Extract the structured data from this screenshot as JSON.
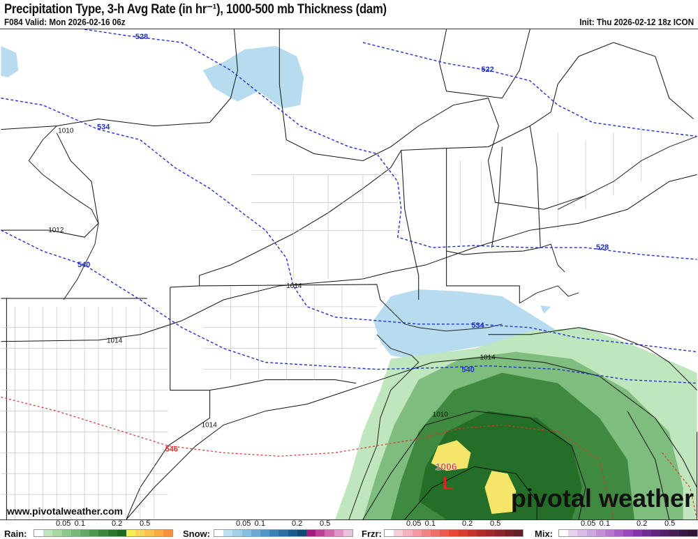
{
  "header": {
    "title": "Precipitation Type, 3-h Avg Rate (in hr⁻¹), 1000-500 mb Thickness (dam)",
    "valid": "F084 Valid: Mon 2026-02-16 06z",
    "init": "Init: Thu 2026-02-12 18z ICON"
  },
  "map": {
    "thickness_labels": [
      "528",
      "522",
      "534",
      "540",
      "528",
      "534",
      "540",
      "546"
    ],
    "pressure_labels": [
      "1010",
      "1012",
      "1014",
      "1014",
      "1014",
      "1014",
      "1010",
      "1006"
    ],
    "low_marker": "L",
    "colors": {
      "thickness": "#1f2fd0",
      "thickness_warm": "#e03030",
      "isobar": "#111111",
      "low": "#e02020"
    }
  },
  "watermark": "www.pivotalweather.com",
  "brand": "pivotal weather",
  "legend": [
    {
      "label": "Rain:",
      "ticks": [
        "0.05",
        "0.1",
        "0.2",
        "0.5"
      ],
      "colors": [
        "#ffffff",
        "#bfe6bd",
        "#a6d8a4",
        "#8ec98c",
        "#78b977",
        "#63a863",
        "#4f984f",
        "#3c873d",
        "#2b772d",
        "#1d6a20",
        "#f5ee55",
        "#f8d65a",
        "#f9c150",
        "#f9aa45",
        "#f9913a"
      ]
    },
    {
      "label": "Snow:",
      "ticks": [
        "0.05",
        "0.1",
        "0.2",
        "0.5"
      ],
      "colors": [
        "#ffffff",
        "#bfe0f0",
        "#a3d0e8",
        "#86bedf",
        "#6aaad4",
        "#5096c6",
        "#3b82b6",
        "#2a6ea3",
        "#1c5a8e",
        "#0f4a75",
        "#a01c7c",
        "#bb4196",
        "#cf6aae",
        "#e095c8",
        "#eec0e0"
      ]
    },
    {
      "label": "Frzr:",
      "ticks": [
        "0.05",
        "0.1",
        "0.2",
        "0.5"
      ],
      "colors": [
        "#ffffff",
        "#f7cfd8",
        "#f4b3bc",
        "#f19b9f",
        "#ee8582",
        "#ec6f68",
        "#ea5a4e",
        "#e84735",
        "#d63d2e",
        "#c3342a",
        "#b02e2a",
        "#9d292a",
        "#8a2529",
        "#772127",
        "#641d24"
      ]
    },
    {
      "label": "Mix:",
      "ticks": [
        "0.05",
        "0.1",
        "0.2",
        "0.5"
      ],
      "colors": [
        "#ffffff",
        "#e8d2f0",
        "#dcbde9",
        "#d0a6e1",
        "#c48fd9",
        "#b878d0",
        "#a860c5",
        "#9848b8",
        "#8535a6",
        "#722a93",
        "#62247f",
        "#54206b",
        "#461b58",
        "#3a1747",
        "#2e1238"
      ]
    }
  ]
}
